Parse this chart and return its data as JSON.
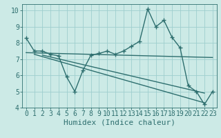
{
  "xlabel": "Humidex (Indice chaleur)",
  "ylabel": "",
  "background_color": "#cceae6",
  "line_color": "#2d6e6e",
  "grid_color": "#9ecece",
  "xlim": [
    -0.5,
    23.5
  ],
  "ylim": [
    4.0,
    10.4
  ],
  "yticks": [
    4,
    5,
    6,
    7,
    8,
    9,
    10
  ],
  "xticks": [
    0,
    1,
    2,
    3,
    4,
    5,
    6,
    7,
    8,
    9,
    10,
    11,
    12,
    13,
    14,
    15,
    16,
    17,
    18,
    19,
    20,
    21,
    22,
    23
  ],
  "main_x": [
    0,
    1,
    2,
    3,
    4,
    5,
    6,
    7,
    8,
    9,
    10,
    11,
    12,
    13,
    14,
    15,
    16,
    17,
    18,
    19,
    20,
    21,
    22,
    23
  ],
  "main_y": [
    8.3,
    7.5,
    7.5,
    7.3,
    7.2,
    5.9,
    5.0,
    6.3,
    7.25,
    7.35,
    7.5,
    7.3,
    7.5,
    7.8,
    8.1,
    10.1,
    9.0,
    9.4,
    8.35,
    7.7,
    5.35,
    5.0,
    4.2,
    5.0
  ],
  "trend1_x": [
    0,
    23
  ],
  "trend1_y": [
    7.4,
    7.1
  ],
  "trend2_x": [
    1,
    22
  ],
  "trend2_y": [
    7.3,
    4.3
  ],
  "trend3_x": [
    2,
    22
  ],
  "trend3_y": [
    7.25,
    4.9
  ],
  "line_width": 1.0,
  "marker_size": 4.0,
  "font_size_label": 8,
  "font_size_tick": 7
}
